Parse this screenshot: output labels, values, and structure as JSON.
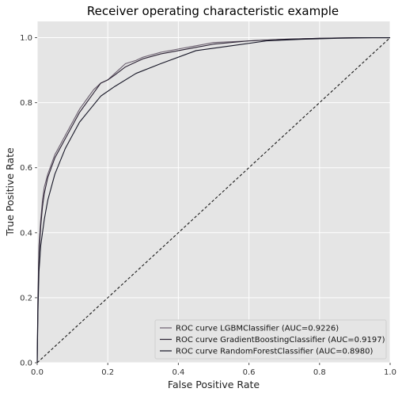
{
  "chart_data": {
    "type": "line",
    "title": "Receiver operating characteristic example",
    "xlabel": "False Positive Rate",
    "ylabel": "True Positive Rate",
    "xlim": [
      0.0,
      1.0
    ],
    "ylim": [
      0.0,
      1.05
    ],
    "xticks": [
      "0.0",
      "0.2",
      "0.4",
      "0.6",
      "0.8",
      "1.0"
    ],
    "yticks": [
      "0.0",
      "0.2",
      "0.4",
      "0.6",
      "0.8",
      "1.0"
    ],
    "grid": true,
    "legend_position": "bottom-right",
    "series": [
      {
        "name": "ROC curve LGBMClassifier (AUC=0.9226)",
        "color": "#6b5f6f",
        "x": [
          0.0,
          0.002,
          0.005,
          0.01,
          0.015,
          0.02,
          0.03,
          0.04,
          0.05,
          0.06,
          0.08,
          0.1,
          0.12,
          0.14,
          0.16,
          0.18,
          0.2,
          0.22,
          0.25,
          0.28,
          0.3,
          0.35,
          0.4,
          0.45,
          0.5,
          0.6,
          0.7,
          0.8,
          0.9,
          1.0
        ],
        "y": [
          0.0,
          0.2,
          0.36,
          0.44,
          0.5,
          0.54,
          0.58,
          0.61,
          0.64,
          0.66,
          0.7,
          0.74,
          0.78,
          0.81,
          0.84,
          0.86,
          0.87,
          0.89,
          0.92,
          0.93,
          0.94,
          0.955,
          0.965,
          0.975,
          0.985,
          0.99,
          0.995,
          0.998,
          1.0,
          1.0
        ]
      },
      {
        "name": "ROC curve GradientBoostingClassifier (AUC=0.9197)",
        "color": "#2b2233",
        "x": [
          0.0,
          0.002,
          0.005,
          0.01,
          0.015,
          0.02,
          0.03,
          0.04,
          0.05,
          0.06,
          0.08,
          0.1,
          0.12,
          0.14,
          0.16,
          0.18,
          0.2,
          0.22,
          0.25,
          0.28,
          0.3,
          0.35,
          0.4,
          0.45,
          0.5,
          0.6,
          0.7,
          0.8,
          0.9,
          1.0
        ],
        "y": [
          0.0,
          0.18,
          0.33,
          0.42,
          0.48,
          0.52,
          0.57,
          0.6,
          0.63,
          0.65,
          0.69,
          0.73,
          0.77,
          0.8,
          0.83,
          0.86,
          0.87,
          0.885,
          0.91,
          0.925,
          0.935,
          0.95,
          0.96,
          0.97,
          0.98,
          0.99,
          0.995,
          0.998,
          1.0,
          1.0
        ]
      },
      {
        "name": "ROC curve RandomForestClassifier (AUC=0.8980)",
        "color": "#161626",
        "x": [
          0.0,
          0.002,
          0.005,
          0.01,
          0.02,
          0.03,
          0.05,
          0.08,
          0.1,
          0.12,
          0.15,
          0.18,
          0.22,
          0.28,
          0.35,
          0.45,
          0.55,
          0.65,
          0.75,
          0.85,
          0.95,
          1.0
        ],
        "y": [
          0.0,
          0.15,
          0.28,
          0.36,
          0.44,
          0.5,
          0.58,
          0.66,
          0.7,
          0.74,
          0.78,
          0.82,
          0.85,
          0.89,
          0.92,
          0.96,
          0.975,
          0.99,
          0.995,
          0.998,
          1.0,
          1.0
        ]
      }
    ],
    "reference_line": {
      "x": [
        0.0,
        1.0
      ],
      "y": [
        0.0,
        1.0
      ],
      "style": "dashed",
      "color": "#1a1a1a"
    }
  }
}
